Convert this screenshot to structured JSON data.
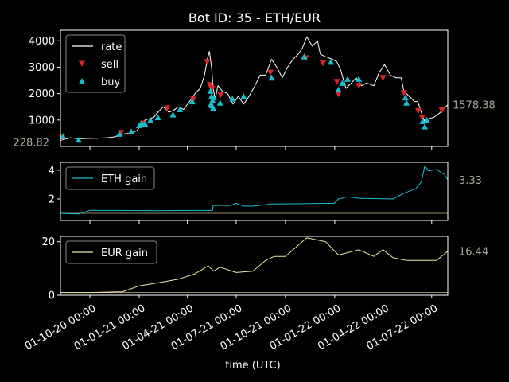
{
  "chart_data": [
    {
      "type": "line",
      "title": "Bot ID: 35 - ETH/EUR",
      "ylim": [
        0,
        4400
      ],
      "yticks": [
        1000,
        2000,
        3000,
        4000
      ],
      "series": [
        {
          "name": "rate",
          "color": "#ffffff",
          "points": [
            [
              "2020-08-07",
              228.82
            ],
            [
              "2020-08-25",
              330
            ],
            [
              "2020-09-10",
              290
            ],
            [
              "2020-09-25",
              300
            ],
            [
              "2020-10-15",
              310
            ],
            [
              "2020-11-01",
              330
            ],
            [
              "2020-11-15",
              360
            ],
            [
              "2020-11-25",
              430
            ],
            [
              "2020-12-05",
              480
            ],
            [
              "2020-12-15",
              500
            ],
            [
              "2020-12-28",
              600
            ],
            [
              "2021-01-05",
              850
            ],
            [
              "2021-01-12",
              1000
            ],
            [
              "2021-01-20",
              1050
            ],
            [
              "2021-01-28",
              1100
            ],
            [
              "2021-02-05",
              1300
            ],
            [
              "2021-02-15",
              1500
            ],
            [
              "2021-02-25",
              1300
            ],
            [
              "2021-03-05",
              1350
            ],
            [
              "2021-03-15",
              1500
            ],
            [
              "2021-03-25",
              1400
            ],
            [
              "2021-04-05",
              1700
            ],
            [
              "2021-04-15",
              2000
            ],
            [
              "2021-04-25",
              2200
            ],
            [
              "2021-05-03",
              2700
            ],
            [
              "2021-05-08",
              3300
            ],
            [
              "2021-05-12",
              3600
            ],
            [
              "2021-05-16",
              3000
            ],
            [
              "2021-05-19",
              2200
            ],
            [
              "2021-05-23",
              1800
            ],
            [
              "2021-05-28",
              2300
            ],
            [
              "2021-06-05",
              2100
            ],
            [
              "2021-06-15",
              2000
            ],
            [
              "2021-06-25",
              1600
            ],
            [
              "2021-07-05",
              1900
            ],
            [
              "2021-07-15",
              1600
            ],
            [
              "2021-07-25",
              1900
            ],
            [
              "2021-08-05",
              2300
            ],
            [
              "2021-08-15",
              2700
            ],
            [
              "2021-08-25",
              2700
            ],
            [
              "2021-09-05",
              3300
            ],
            [
              "2021-09-15",
              3000
            ],
            [
              "2021-09-25",
              2600
            ],
            [
              "2021-10-05",
              3000
            ],
            [
              "2021-10-15",
              3300
            ],
            [
              "2021-10-25",
              3500
            ],
            [
              "2021-11-01",
              3700
            ],
            [
              "2021-11-10",
              4150
            ],
            [
              "2021-11-20",
              3800
            ],
            [
              "2021-11-30",
              4000
            ],
            [
              "2021-12-05",
              3500
            ],
            [
              "2021-12-15",
              3400
            ],
            [
              "2021-12-28",
              3300
            ],
            [
              "2022-01-05",
              3200
            ],
            [
              "2022-01-12",
              2900
            ],
            [
              "2022-01-22",
              2200
            ],
            [
              "2022-02-01",
              2400
            ],
            [
              "2022-02-10",
              2600
            ],
            [
              "2022-02-20",
              2300
            ],
            [
              "2022-03-01",
              2400
            ],
            [
              "2022-03-15",
              2300
            ],
            [
              "2022-03-25",
              2800
            ],
            [
              "2022-04-04",
              3100
            ],
            [
              "2022-04-15",
              2700
            ],
            [
              "2022-04-25",
              2600
            ],
            [
              "2022-05-05",
              2600
            ],
            [
              "2022-05-10",
              2100
            ],
            [
              "2022-05-20",
              1900
            ],
            [
              "2022-05-30",
              1700
            ],
            [
              "2022-06-05",
              1700
            ],
            [
              "2022-06-13",
              1200
            ],
            [
              "2022-06-18",
              950
            ],
            [
              "2022-06-25",
              1050
            ],
            [
              "2022-07-05",
              1100
            ],
            [
              "2022-07-15",
              1250
            ],
            [
              "2022-07-25",
              1450
            ],
            [
              "2022-07-31",
              1578.38
            ]
          ]
        },
        {
          "name": "sell",
          "color": "#d62728",
          "marker": "triangle-down",
          "points": [
            [
              "2020-08-10",
              330
            ],
            [
              "2020-11-28",
              520
            ],
            [
              "2021-01-08",
              870
            ],
            [
              "2021-02-22",
              1450
            ],
            [
              "2021-04-12",
              1780
            ],
            [
              "2021-05-08",
              3200
            ],
            [
              "2021-05-13",
              2330
            ],
            [
              "2021-05-15",
              2220
            ],
            [
              "2021-05-17",
              2180
            ],
            [
              "2021-06-02",
              1950
            ],
            [
              "2021-09-03",
              2800
            ],
            [
              "2021-11-08",
              3350
            ],
            [
              "2021-12-10",
              3150
            ],
            [
              "2022-01-05",
              2450
            ],
            [
              "2022-01-08",
              1980
            ],
            [
              "2022-02-15",
              2300
            ],
            [
              "2022-04-01",
              2600
            ],
            [
              "2022-05-10",
              2030
            ],
            [
              "2022-06-06",
              1350
            ],
            [
              "2022-06-13",
              1100
            ],
            [
              "2022-07-20",
              1370
            ]
          ]
        },
        {
          "name": "buy",
          "color": "#17becf",
          "marker": "triangle-up",
          "points": [
            [
              "2020-08-12",
              380
            ],
            [
              "2020-09-10",
              250
            ],
            [
              "2020-11-25",
              470
            ],
            [
              "2020-12-17",
              560
            ],
            [
              "2021-01-01",
              800
            ],
            [
              "2021-01-06",
              880
            ],
            [
              "2021-01-12",
              850
            ],
            [
              "2021-01-22",
              1000
            ],
            [
              "2021-02-05",
              1100
            ],
            [
              "2021-03-05",
              1200
            ],
            [
              "2021-03-18",
              1400
            ],
            [
              "2021-04-10",
              1700
            ],
            [
              "2021-05-14",
              2100
            ],
            [
              "2021-05-15",
              1600
            ],
            [
              "2021-05-16",
              1900
            ],
            [
              "2021-05-17",
              1550
            ],
            [
              "2021-05-18",
              1750
            ],
            [
              "2021-05-19",
              1450
            ],
            [
              "2021-05-20",
              1850
            ],
            [
              "2021-06-01",
              1650
            ],
            [
              "2021-06-24",
              1800
            ],
            [
              "2021-07-15",
              1900
            ],
            [
              "2021-09-05",
              2600
            ],
            [
              "2021-11-05",
              3400
            ],
            [
              "2021-12-25",
              3200
            ],
            [
              "2022-01-08",
              2150
            ],
            [
              "2022-01-15",
              2400
            ],
            [
              "2022-01-25",
              2550
            ],
            [
              "2022-02-15",
              2550
            ],
            [
              "2022-05-13",
              1850
            ],
            [
              "2022-05-15",
              1650
            ],
            [
              "2022-06-14",
              950
            ],
            [
              "2022-06-18",
              750
            ],
            [
              "2022-06-22",
              1000
            ]
          ]
        }
      ],
      "annotations": [
        {
          "text": "1578.38",
          "x": "2022-07-31",
          "y": 1578.38,
          "side": "right"
        },
        {
          "text": "228.82",
          "x": "2020-08-07",
          "y": 228.82,
          "side": "left"
        }
      ],
      "legend": "top-left"
    },
    {
      "type": "line",
      "ylim": [
        0.5,
        4.55
      ],
      "yticks": [
        2,
        4
      ],
      "hline": 1,
      "series": [
        {
          "name": "ETH gain",
          "color": "#17becf",
          "points": [
            [
              "2020-08-07",
              1.0
            ],
            [
              "2020-09-10",
              0.95
            ],
            [
              "2020-10-01",
              1.2
            ],
            [
              "2020-12-01",
              1.2
            ],
            [
              "2021-02-01",
              1.18
            ],
            [
              "2021-04-01",
              1.2
            ],
            [
              "2021-05-18",
              1.2
            ],
            [
              "2021-05-19",
              1.55
            ],
            [
              "2021-06-20",
              1.55
            ],
            [
              "2021-07-01",
              1.7
            ],
            [
              "2021-07-15",
              1.5
            ],
            [
              "2021-08-01",
              1.5
            ],
            [
              "2021-09-05",
              1.65
            ],
            [
              "2021-12-31",
              1.7
            ],
            [
              "2022-01-08",
              2.0
            ],
            [
              "2022-01-25",
              2.15
            ],
            [
              "2022-02-15",
              2.05
            ],
            [
              "2022-04-20",
              2.0
            ],
            [
              "2022-05-10",
              2.4
            ],
            [
              "2022-06-01",
              2.7
            ],
            [
              "2022-06-12",
              3.2
            ],
            [
              "2022-06-18",
              4.3
            ],
            [
              "2022-06-25",
              3.95
            ],
            [
              "2022-07-10",
              4.05
            ],
            [
              "2022-07-25",
              3.7
            ],
            [
              "2022-07-31",
              3.33
            ]
          ]
        }
      ],
      "annotations": [
        {
          "text": "3.33",
          "x": "2022-07-31",
          "y": 3.33,
          "side": "right"
        }
      ],
      "legend": "top-left"
    },
    {
      "type": "line",
      "ylim": [
        0,
        22
      ],
      "yticks": [
        0,
        20
      ],
      "hline": 1,
      "xlabel": "time (UTC)",
      "series": [
        {
          "name": "EUR gain",
          "color": "#eee8aa",
          "points": [
            [
              "2020-08-07",
              1.0
            ],
            [
              "2020-10-01",
              1.0
            ],
            [
              "2020-12-01",
              1.3
            ],
            [
              "2021-01-01",
              3.5
            ],
            [
              "2021-02-15",
              5.0
            ],
            [
              "2021-03-15",
              6.0
            ],
            [
              "2021-04-15",
              8.0
            ],
            [
              "2021-05-10",
              11.0
            ],
            [
              "2021-05-20",
              9.0
            ],
            [
              "2021-06-01",
              10.5
            ],
            [
              "2021-07-01",
              8.5
            ],
            [
              "2021-08-01",
              9.0
            ],
            [
              "2021-08-25",
              13.0
            ],
            [
              "2021-09-10",
              14.5
            ],
            [
              "2021-10-01",
              14.5
            ],
            [
              "2021-11-10",
              21.5
            ],
            [
              "2021-12-15",
              20.0
            ],
            [
              "2022-01-08",
              15.0
            ],
            [
              "2022-02-15",
              17.0
            ],
            [
              "2022-03-15",
              14.5
            ],
            [
              "2022-04-01",
              17.0
            ],
            [
              "2022-04-20",
              14.0
            ],
            [
              "2022-05-15",
              13.0
            ],
            [
              "2022-06-10",
              13.0
            ],
            [
              "2022-07-10",
              13.0
            ],
            [
              "2022-07-31",
              16.44
            ]
          ]
        }
      ],
      "annotations": [
        {
          "text": "16.44",
          "x": "2022-07-31",
          "y": 16.44,
          "side": "right"
        }
      ],
      "legend": "top-left"
    }
  ],
  "xaxis": {
    "range": [
      "2020-08-07",
      "2022-07-31"
    ],
    "ticks": [
      {
        "date": "2020-10-01",
        "label": "01-10-20 00:00"
      },
      {
        "date": "2021-01-01",
        "label": "01-01-21 00:00"
      },
      {
        "date": "2021-04-01",
        "label": "01-04-21 00:00"
      },
      {
        "date": "2021-07-01",
        "label": "01-07-21 00:00"
      },
      {
        "date": "2021-10-01",
        "label": "01-10-21 00:00"
      },
      {
        "date": "2022-01-01",
        "label": "01-01-22 00:00"
      },
      {
        "date": "2022-04-01",
        "label": "01-04-22 00:00"
      },
      {
        "date": "2022-07-01",
        "label": "01-07-22 00:00"
      }
    ]
  },
  "colors": {
    "background": "#000000",
    "axes": "#ffffff",
    "annotation": "#a6a69a",
    "hline": "#eee8aa"
  }
}
